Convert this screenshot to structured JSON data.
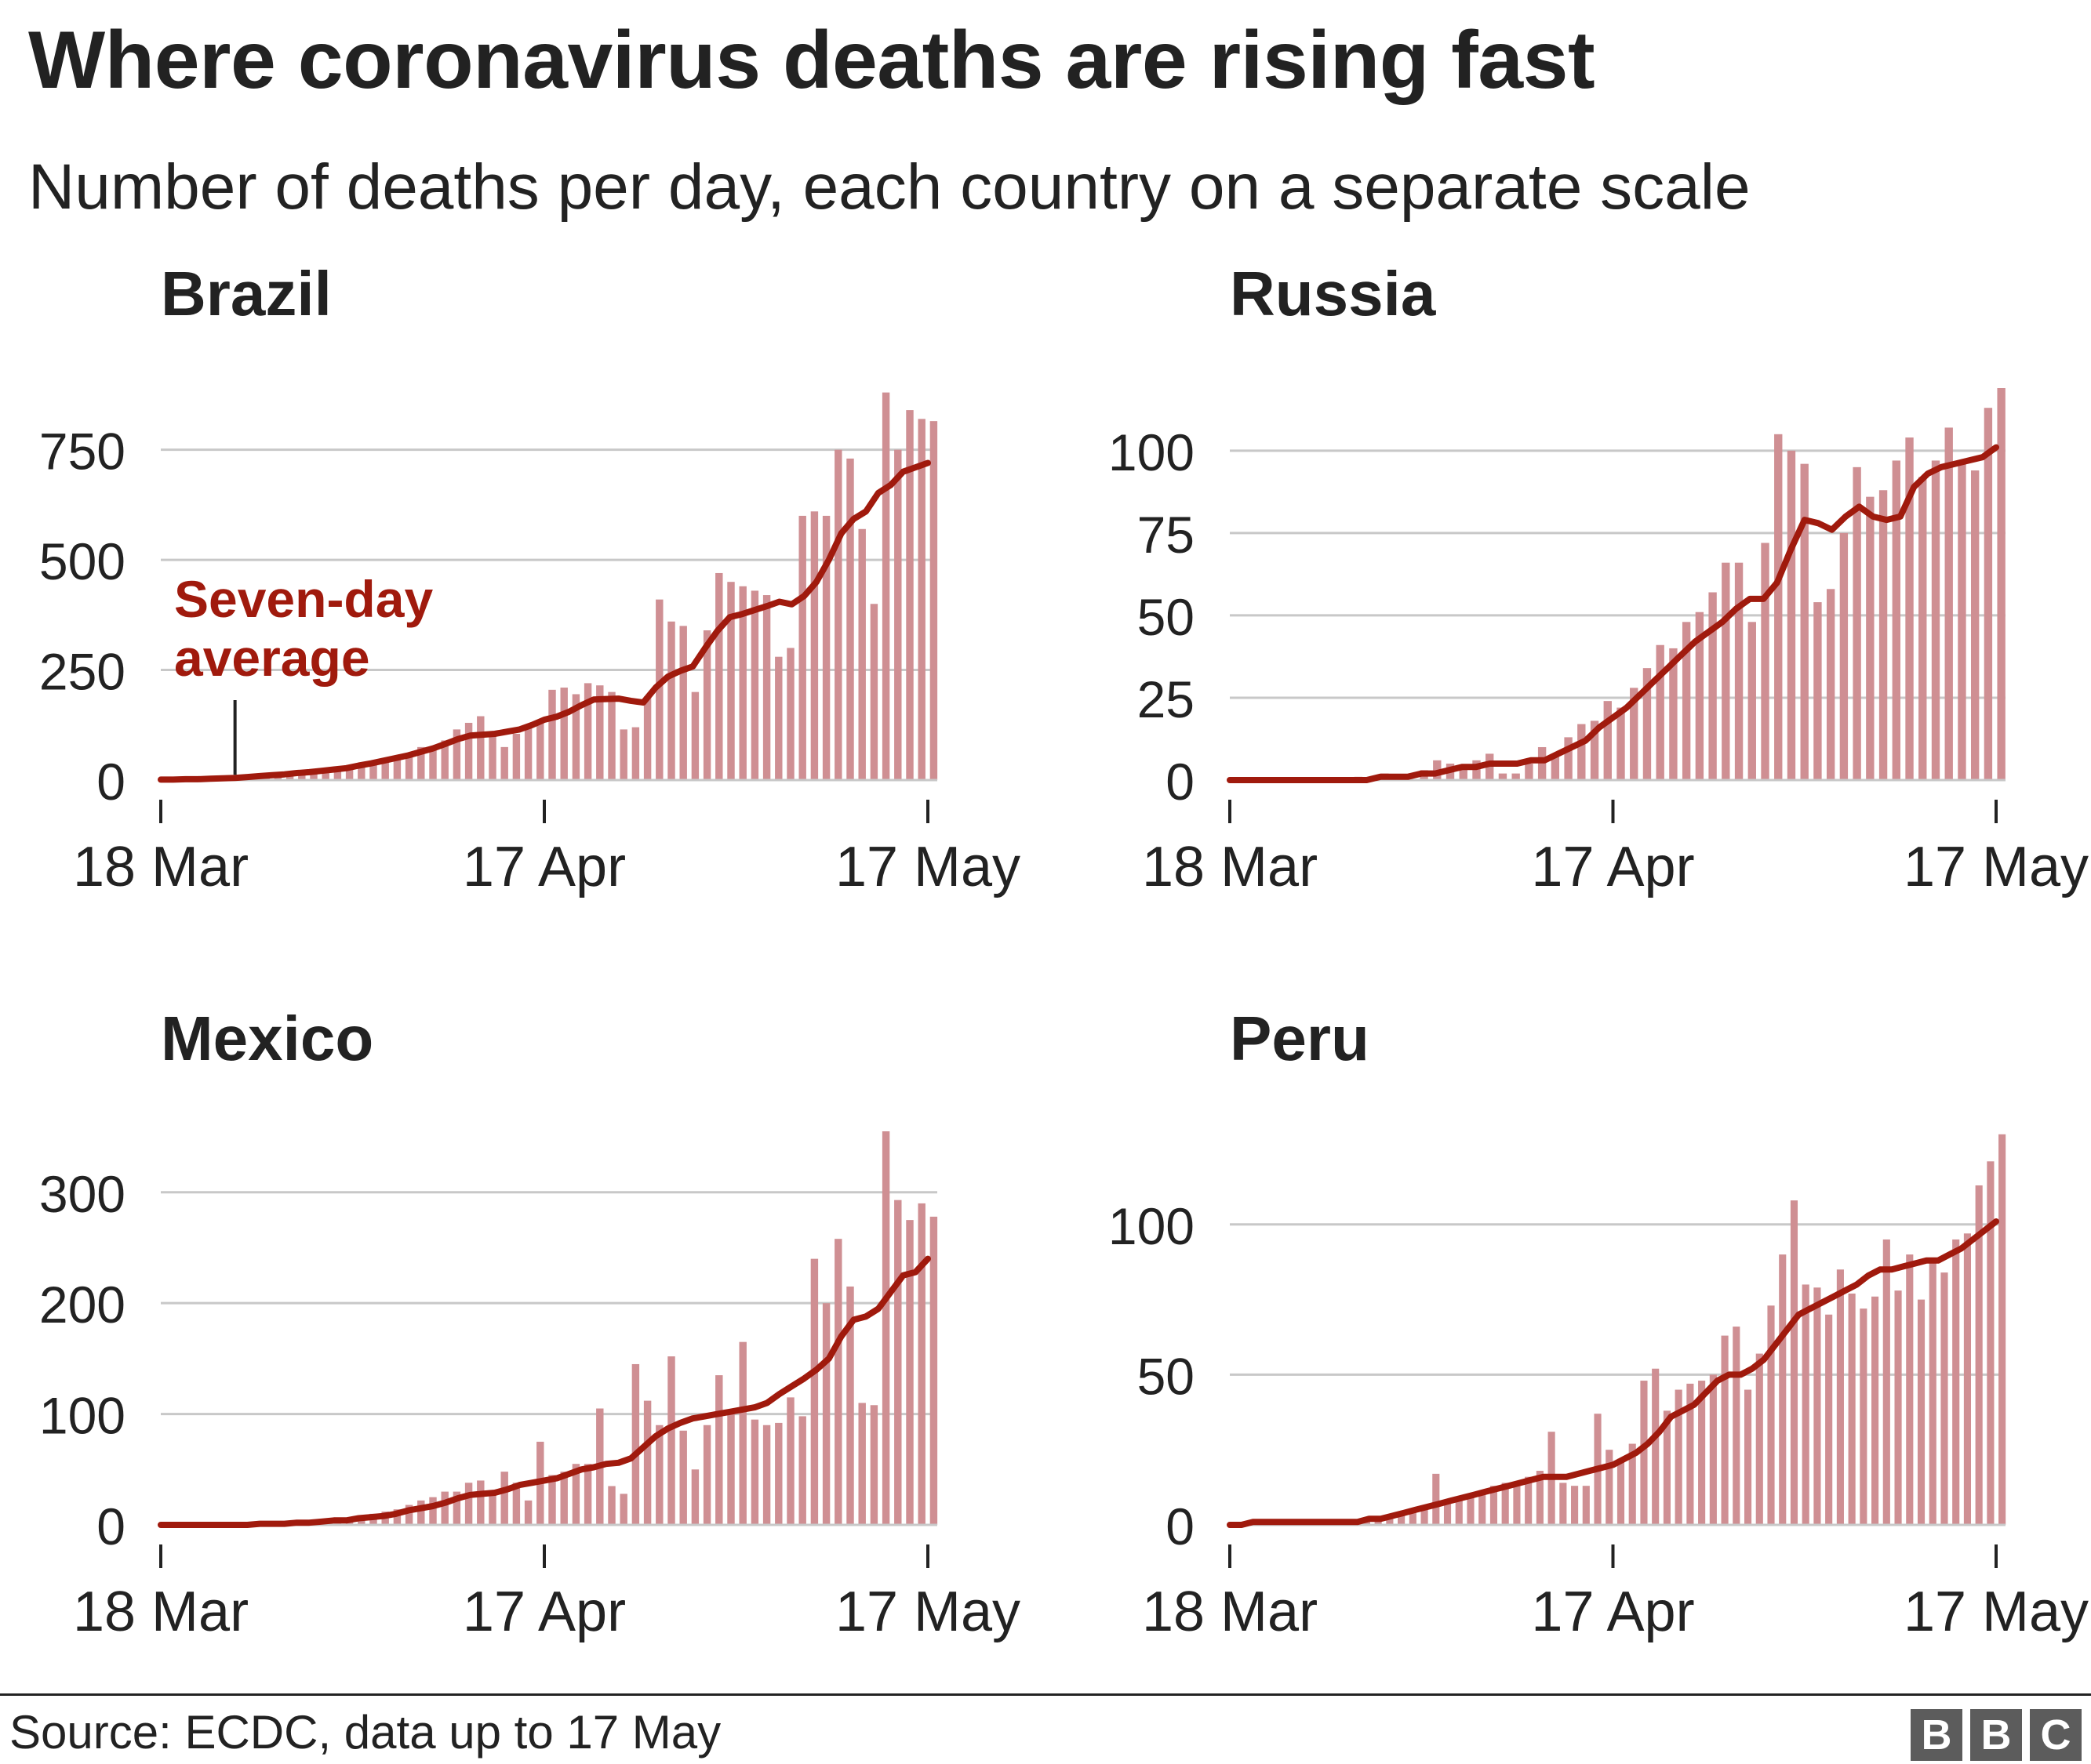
{
  "title": "Where coronavirus deaths are rising fast",
  "subtitle": "Number of deaths per day, each country on a separate scale",
  "source": "Source: ECDC, data up to 17 May",
  "logo_letters": [
    "B",
    "B",
    "C"
  ],
  "colors": {
    "bar": "#cf8f93",
    "line": "#a01a0d",
    "grid": "#c8c8c8",
    "text": "#222222",
    "annotation": "#a01a0d"
  },
  "chart_data": [
    {
      "type": "bar",
      "title": "Brazil",
      "x_range": [
        "18 Mar",
        "17 May"
      ],
      "x_ticks": [
        "18 Mar",
        "17 Apr",
        "17 May"
      ],
      "y_ticks": [
        "0",
        "250",
        "500",
        "750"
      ],
      "y_tick_values": [
        0,
        250,
        500,
        750
      ],
      "ylim": [
        0,
        890
      ],
      "annotation": {
        "lines": [
          "Seven-day",
          "average"
        ],
        "day_index": 6
      },
      "series": [
        {
          "kind": "bar",
          "values": [
            1,
            1,
            2,
            3,
            2,
            4,
            5,
            8,
            9,
            11,
            13,
            14,
            18,
            20,
            23,
            26,
            35,
            42,
            45,
            54,
            60,
            75,
            70,
            90,
            115,
            130,
            145,
            110,
            75,
            105,
            120,
            130,
            205,
            210,
            195,
            220,
            215,
            200,
            115,
            120,
            190,
            410,
            360,
            350,
            200,
            340,
            470,
            450,
            440,
            430,
            420,
            280,
            300,
            600,
            610,
            600,
            750,
            730,
            570,
            400,
            880,
            750,
            840,
            820,
            815
          ],
          "line": [
            1,
            1,
            2,
            2,
            3,
            4,
            5,
            7,
            9,
            11,
            13,
            16,
            18,
            21,
            24,
            27,
            33,
            38,
            44,
            50,
            56,
            64,
            72,
            82,
            93,
            101,
            103,
            105,
            110,
            115,
            125,
            137,
            144,
            155,
            170,
            183,
            184,
            185,
            180,
            176,
            210,
            235,
            248,
            258,
            300,
            339,
            370,
            377,
            386,
            395,
            405,
            399,
            418,
            450,
            500,
            560,
            593,
            610,
            652,
            670,
            700,
            710,
            720
          ]
        }
      ]
    },
    {
      "type": "bar",
      "title": "Russia",
      "x_range": [
        "18 Mar",
        "17 May"
      ],
      "x_ticks": [
        "18 Mar",
        "17 Apr",
        "17 May"
      ],
      "y_ticks": [
        "0",
        "25",
        "50",
        "75",
        "100"
      ],
      "y_tick_values": [
        0,
        25,
        50,
        75,
        100
      ],
      "ylim": [
        0,
        119
      ],
      "series": [
        {
          "kind": "bar",
          "values": [
            0,
            0,
            0,
            0,
            0,
            0,
            0,
            0,
            0,
            1,
            1,
            2,
            1,
            0,
            3,
            6,
            5,
            4,
            6,
            8,
            2,
            2,
            5,
            10,
            7,
            13,
            17,
            18,
            24,
            22,
            28,
            34,
            41,
            40,
            48,
            51,
            57,
            66,
            66,
            48,
            72,
            105,
            100,
            96,
            54,
            58,
            75,
            95,
            86,
            88,
            97,
            104,
            92,
            97,
            107,
            96,
            94,
            113,
            119
          ],
          "line": [
            0,
            0,
            0,
            0,
            0,
            0,
            0,
            0,
            0,
            0,
            0,
            1,
            1,
            1,
            2,
            2,
            3,
            4,
            4,
            5,
            5,
            5,
            6,
            6,
            8,
            10,
            12,
            16,
            19,
            22,
            26,
            30,
            34,
            38,
            42,
            45,
            48,
            52,
            55,
            55,
            60,
            70,
            79,
            78,
            76,
            80,
            83,
            80,
            79,
            80,
            89,
            93,
            95,
            96,
            97,
            98,
            101
          ]
        }
      ]
    },
    {
      "type": "bar",
      "title": "Mexico",
      "x_range": [
        "18 Mar",
        "17 May"
      ],
      "x_ticks": [
        "18 Mar",
        "17 Apr",
        "17 May"
      ],
      "y_ticks": [
        "0",
        "100",
        "200",
        "300"
      ],
      "y_tick_values": [
        0,
        100,
        200,
        300
      ],
      "ylim": [
        0,
        355
      ],
      "series": [
        {
          "kind": "bar",
          "values": [
            0,
            0,
            0,
            0,
            1,
            0,
            1,
            1,
            2,
            2,
            3,
            3,
            4,
            5,
            4,
            6,
            8,
            10,
            12,
            14,
            18,
            22,
            25,
            30,
            30,
            38,
            40,
            28,
            48,
            38,
            22,
            75,
            45,
            48,
            55,
            55,
            105,
            35,
            28,
            145,
            112,
            90,
            152,
            85,
            50,
            90,
            135,
            100,
            165,
            95,
            90,
            92,
            115,
            98,
            240,
            200,
            258,
            215,
            110,
            108,
            355,
            293,
            275,
            290,
            278
          ],
          "line": [
            0,
            0,
            0,
            0,
            0,
            0,
            0,
            0,
            1,
            1,
            1,
            2,
            2,
            3,
            4,
            4,
            6,
            7,
            8,
            10,
            13,
            15,
            17,
            20,
            24,
            27,
            28,
            29,
            32,
            36,
            38,
            40,
            42,
            46,
            50,
            52,
            55,
            56,
            60,
            70,
            80,
            87,
            92,
            96,
            98,
            100,
            102,
            104,
            106,
            110,
            118,
            125,
            132,
            140,
            150,
            170,
            185,
            188,
            195,
            210,
            225,
            228,
            240
          ]
        }
      ]
    },
    {
      "type": "bar",
      "title": "Peru",
      "x_range": [
        "18 Mar",
        "17 May"
      ],
      "x_ticks": [
        "18 Mar",
        "17 Apr",
        "17 May"
      ],
      "y_ticks": [
        "0",
        "50",
        "100"
      ],
      "y_tick_values": [
        0,
        50,
        100
      ],
      "ylim": [
        0,
        131
      ],
      "series": [
        {
          "kind": "bar",
          "values": [
            0,
            0,
            0,
            1,
            1,
            1,
            1,
            1,
            1,
            1,
            1,
            2,
            2,
            2,
            4,
            5,
            6,
            17,
            7,
            9,
            10,
            11,
            13,
            14,
            14,
            16,
            18,
            31,
            14,
            13,
            13,
            37,
            25,
            22,
            27,
            48,
            52,
            38,
            45,
            47,
            48,
            50,
            63,
            66,
            45,
            57,
            73,
            90,
            108,
            80,
            79,
            70,
            85,
            77,
            72,
            76,
            95,
            78,
            90,
            75,
            88,
            84,
            95,
            97,
            113,
            121,
            130
          ],
          "line": [
            0,
            0,
            1,
            1,
            1,
            1,
            1,
            1,
            1,
            1,
            1,
            1,
            2,
            2,
            3,
            4,
            5,
            6,
            7,
            8,
            9,
            10,
            11,
            12,
            13,
            14,
            15,
            16,
            16,
            16,
            17,
            18,
            19,
            20,
            22,
            24,
            27,
            31,
            36,
            38,
            40,
            44,
            48,
            50,
            50,
            52,
            55,
            60,
            65,
            70,
            72,
            74,
            76,
            78,
            80,
            83,
            85,
            85,
            86,
            87,
            88,
            88,
            90,
            92,
            95,
            98,
            101
          ]
        }
      ]
    }
  ]
}
